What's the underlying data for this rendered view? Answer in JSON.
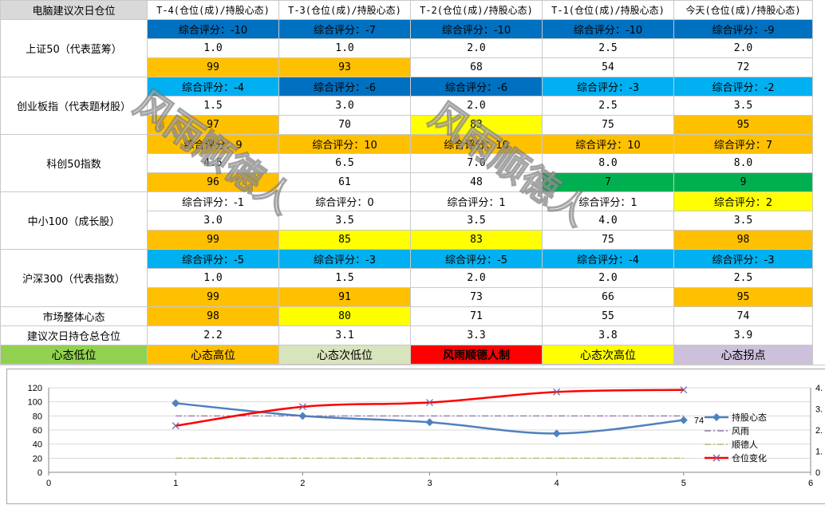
{
  "sheet": {
    "corner": "电脑建议次日仓位",
    "headers": [
      "T-4(仓位(成)/持股心态)",
      "T-3(仓位(成)/持股心态)",
      "T-2(仓位(成)/持股心态)",
      "T-1(仓位(成)/持股心态)",
      "今天(仓位(成)/持股心态)"
    ],
    "groups": [
      {
        "label": "上证50（代表蓝筹）",
        "scores": [
          "综合评分：-10",
          "综合评分：-7",
          "综合评分：-10",
          "综合评分：-10",
          "综合评分：-9"
        ],
        "score_colors": [
          "#0070c0",
          "#0070c0",
          "#0070c0",
          "#0070c0",
          "#0070c0"
        ],
        "positions": [
          "1.0",
          "1.0",
          "2.0",
          "2.5",
          "2.0"
        ],
        "moods": [
          "99",
          "93",
          "68",
          "54",
          "72"
        ],
        "mood_colors": [
          "#ffc000",
          "#ffc000",
          "#ffffff",
          "#ffffff",
          "#ffffff"
        ]
      },
      {
        "label": "创业板指（代表题材股）",
        "scores": [
          "综合评分：-4",
          "综合评分：-6",
          "综合评分：-6",
          "综合评分：-3",
          "综合评分：-2"
        ],
        "score_colors": [
          "#00b0f0",
          "#0070c0",
          "#0070c0",
          "#00b0f0",
          "#00b0f0"
        ],
        "positions": [
          "1.5",
          "3.0",
          "2.0",
          "2.5",
          "3.5"
        ],
        "moods": [
          "97",
          "70",
          "83",
          "75",
          "95"
        ],
        "mood_colors": [
          "#ffc000",
          "#ffffff",
          "#ffff00",
          "#ffffff",
          "#ffc000"
        ]
      },
      {
        "label": "科创50指数",
        "scores": [
          "综合评分：9",
          "综合评分：10",
          "综合评分：10",
          "综合评分：10",
          "综合评分：7"
        ],
        "score_colors": [
          "#ffc000",
          "#ffc000",
          "#ffc000",
          "#ffc000",
          "#ffc000"
        ],
        "positions": [
          "4.5",
          "6.5",
          "7.0",
          "8.0",
          "8.0"
        ],
        "moods": [
          "96",
          "61",
          "48",
          "7",
          "9"
        ],
        "mood_colors": [
          "#ffc000",
          "#ffffff",
          "#ffffff",
          "#00b050",
          "#00b050"
        ]
      },
      {
        "label": "中小100（成长股）",
        "scores": [
          "综合评分：-1",
          "综合评分：0",
          "综合评分：1",
          "综合评分：1",
          "综合评分：2"
        ],
        "score_colors": [
          "#ffffff",
          "#ffffff",
          "#ffffff",
          "#ffffff",
          "#ffff00"
        ],
        "positions": [
          "3.0",
          "3.5",
          "3.5",
          "4.0",
          "3.5"
        ],
        "moods": [
          "99",
          "85",
          "83",
          "75",
          "98"
        ],
        "mood_colors": [
          "#ffc000",
          "#ffff00",
          "#ffff00",
          "#ffffff",
          "#ffc000"
        ]
      },
      {
        "label": "沪深300（代表指数）",
        "scores": [
          "综合评分：-5",
          "综合评分：-3",
          "综合评分：-5",
          "综合评分：-4",
          "综合评分：-3"
        ],
        "score_colors": [
          "#00b0f0",
          "#00b0f0",
          "#00b0f0",
          "#00b0f0",
          "#00b0f0"
        ],
        "positions": [
          "1.0",
          "1.5",
          "2.0",
          "2.0",
          "2.5"
        ],
        "moods": [
          "99",
          "91",
          "73",
          "66",
          "95"
        ],
        "mood_colors": [
          "#ffc000",
          "#ffc000",
          "#ffffff",
          "#ffffff",
          "#ffc000"
        ]
      }
    ],
    "market_label": "市场整体心态",
    "market_values": [
      "98",
      "80",
      "71",
      "55",
      "74"
    ],
    "market_colors": [
      "#ffc000",
      "#ffff00",
      "#ffffff",
      "#ffffff",
      "#ffffff"
    ],
    "total_label": "建议次日持仓总仓位",
    "total_values": [
      "2.2",
      "3.1",
      "3.3",
      "3.8",
      "3.9"
    ],
    "legend": [
      {
        "text": "心态低位",
        "color": "#92d050"
      },
      {
        "text": "心态高位",
        "color": "#ffc000"
      },
      {
        "text": "心态次低位",
        "color": "#d8e4bc"
      },
      {
        "text": "风雨顺德人制",
        "color": "#ff0000"
      },
      {
        "text": "心态次高位",
        "color": "#ffff00"
      },
      {
        "text": "心态拐点",
        "color": "#ccc0da"
      }
    ]
  },
  "watermarks": [
    "风雨顺德人",
    "风雨顺德人"
  ],
  "chart_data": {
    "type": "line",
    "xlim": [
      0,
      6
    ],
    "x_ticks": [
      "0",
      "1",
      "2",
      "3",
      "4",
      "5",
      "6"
    ],
    "ylim": [
      0,
      120
    ],
    "y_ticks": [
      "0",
      "20",
      "40",
      "60",
      "80",
      "100",
      "120"
    ],
    "y2lim": [
      0,
      4
    ],
    "y2_ticks": [
      "0",
      "1.",
      "2.",
      "3.",
      "4."
    ],
    "grid": "horizontal",
    "legend_position": "right",
    "series": [
      {
        "name": "持股心态",
        "axis": "left",
        "color": "#4f81bd",
        "marker": "diamond",
        "x": [
          1,
          2,
          3,
          4,
          5
        ],
        "values": [
          98,
          80,
          71,
          55,
          74
        ],
        "end_label": "74"
      },
      {
        "name": "风雨",
        "axis": "left",
        "color": "#8064a2",
        "style": "dash-dot",
        "x": [
          1,
          2,
          3,
          4,
          5
        ],
        "values": [
          80,
          80,
          80,
          80,
          80
        ]
      },
      {
        "name": "顺德人",
        "axis": "left",
        "color": "#9bbb59",
        "style": "dash-dot",
        "x": [
          1,
          2,
          3,
          4,
          5
        ],
        "values": [
          20,
          20,
          20,
          20,
          20
        ]
      },
      {
        "name": "仓位变化",
        "axis": "right",
        "color": "#ff0000",
        "marker": "x",
        "x": [
          1,
          2,
          3,
          4,
          5
        ],
        "values": [
          2.2,
          3.1,
          3.3,
          3.8,
          3.9
        ]
      }
    ]
  }
}
